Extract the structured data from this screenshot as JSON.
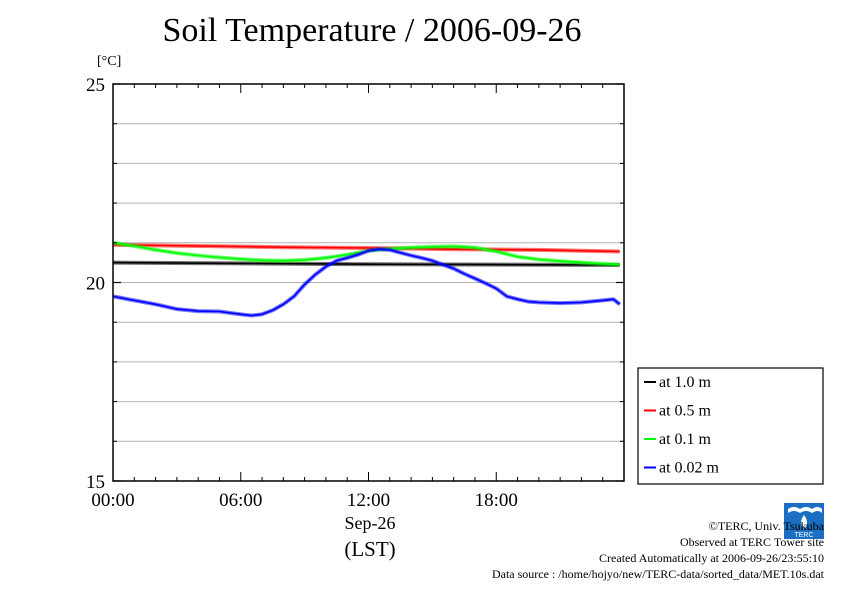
{
  "chart_data": {
    "type": "line",
    "title": "Soil Temperature / 2006-09-26",
    "ylabel": "[°C]",
    "ylim": [
      15,
      25
    ],
    "y_ticks": [
      "25",
      "20",
      "15"
    ],
    "xlim": [
      0,
      24
    ],
    "x_ticks": [
      "00:00",
      "06:00",
      "12:00",
      "18:00"
    ],
    "x_date_label": "Sep-26",
    "x_time_label": "(LST)",
    "grid": true,
    "legend_position": "right",
    "series": [
      {
        "name": "at 1.0 m",
        "color": "#000000",
        "x": [
          0,
          6,
          12,
          18,
          23.8
        ],
        "values": [
          20.5,
          20.48,
          20.46,
          20.45,
          20.44
        ]
      },
      {
        "name": "at 0.5 m",
        "color": "#ff0000",
        "x": [
          0,
          4,
          8,
          12,
          16,
          20,
          23.8
        ],
        "values": [
          20.95,
          20.92,
          20.89,
          20.87,
          20.84,
          20.82,
          20.78
        ]
      },
      {
        "name": "at 0.1 m",
        "color": "#00ff00",
        "x": [
          0,
          1,
          2,
          3,
          4,
          5,
          6,
          7,
          8,
          9,
          10,
          11,
          12,
          13,
          14,
          15,
          16,
          17,
          18,
          19,
          20,
          21,
          22,
          23,
          23.8
        ],
        "values": [
          21.0,
          20.92,
          20.82,
          20.74,
          20.68,
          20.63,
          20.59,
          20.56,
          20.55,
          20.57,
          20.62,
          20.7,
          20.8,
          20.85,
          20.88,
          20.9,
          20.91,
          20.88,
          20.78,
          20.65,
          20.58,
          20.54,
          20.5,
          20.47,
          20.45
        ]
      },
      {
        "name": "at 0.02 m",
        "color": "#0000ff",
        "x": [
          0,
          1,
          2,
          3,
          4,
          5,
          6,
          6.5,
          7,
          7.5,
          8,
          8.5,
          9,
          9.5,
          10,
          10.5,
          11,
          11.5,
          12,
          12.5,
          13,
          13.5,
          14,
          14.5,
          15,
          15.5,
          16,
          16.5,
          17,
          17.5,
          18,
          18.5,
          19,
          19.5,
          20,
          21,
          22,
          23,
          23.5,
          23.8
        ],
        "values": [
          19.65,
          19.55,
          19.45,
          19.33,
          19.28,
          19.27,
          19.2,
          19.17,
          19.2,
          19.3,
          19.45,
          19.65,
          19.95,
          20.2,
          20.4,
          20.55,
          20.62,
          20.7,
          20.8,
          20.84,
          20.82,
          20.75,
          20.68,
          20.62,
          20.55,
          20.45,
          20.35,
          20.22,
          20.1,
          19.98,
          19.85,
          19.65,
          19.58,
          19.52,
          19.5,
          19.48,
          19.5,
          19.55,
          19.58,
          19.45
        ]
      }
    ]
  },
  "footer": {
    "copyright": "©TERC, Univ. Tsukuba",
    "observed": "Observed at TERC Tower site",
    "created": "Created Automatically at 2006-09-26/23:55:10",
    "source": "Data source : /home/hojyo/new/TERC-data/sorted_data/MET.10s.dat",
    "logo_text": "TERC"
  }
}
